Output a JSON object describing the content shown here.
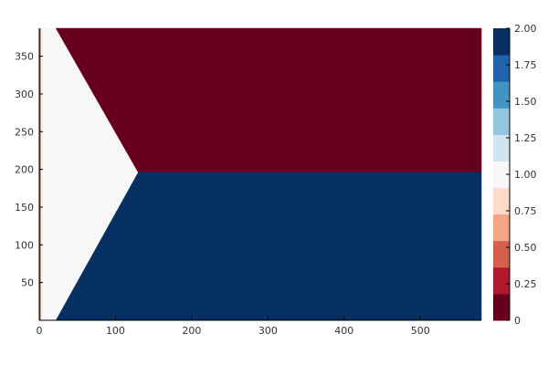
{
  "chart_data": {
    "type": "heatmap",
    "title": "",
    "xlabel": "",
    "ylabel": "",
    "xlim": [
      0,
      580
    ],
    "ylim": [
      0,
      387
    ],
    "x_ticks": [
      0,
      100,
      200,
      300,
      400,
      500
    ],
    "y_ticks": [
      50,
      100,
      150,
      200,
      250,
      300,
      350
    ],
    "grid": false,
    "regions": [
      {
        "value": 1.0,
        "polygon": [
          [
            0,
            387
          ],
          [
            22,
            387
          ],
          [
            130,
            196
          ],
          [
            22,
            0
          ],
          [
            0,
            0
          ]
        ]
      },
      {
        "value": 0.0,
        "polygon": [
          [
            22,
            387
          ],
          [
            580,
            387
          ],
          [
            580,
            196
          ],
          [
            130,
            196
          ]
        ]
      },
      {
        "value": 2.0,
        "polygon": [
          [
            22,
            0
          ],
          [
            130,
            196
          ],
          [
            580,
            196
          ],
          [
            580,
            0
          ]
        ]
      }
    ],
    "boundary_line": {
      "x": 0,
      "y_range": [
        0,
        387
      ],
      "color": "#c0392b"
    },
    "colorbar": {
      "min": 0,
      "max": 2,
      "ticks": [
        0,
        0.25,
        0.5,
        0.75,
        1.0,
        1.25,
        1.5,
        1.75,
        2.0
      ],
      "tick_labels": [
        "0",
        "0.25",
        "0.50",
        "0.75",
        "1.00",
        "1.25",
        "1.50",
        "1.75",
        "2.00"
      ],
      "bins": [
        {
          "from": 0.0,
          "to": 0.1818,
          "color": "#67001f"
        },
        {
          "from": 0.1818,
          "to": 0.3636,
          "color": "#b2182b"
        },
        {
          "from": 0.3636,
          "to": 0.5455,
          "color": "#d6604d"
        },
        {
          "from": 0.5455,
          "to": 0.7273,
          "color": "#f4a582"
        },
        {
          "from": 0.7273,
          "to": 0.9091,
          "color": "#fddbc7"
        },
        {
          "from": 0.9091,
          "to": 1.0909,
          "color": "#f7f7f7"
        },
        {
          "from": 1.0909,
          "to": 1.2727,
          "color": "#d1e5f0"
        },
        {
          "from": 1.2727,
          "to": 1.4545,
          "color": "#92c5de"
        },
        {
          "from": 1.4545,
          "to": 1.6364,
          "color": "#4393c3"
        },
        {
          "from": 1.6364,
          "to": 1.8182,
          "color": "#2166ac"
        },
        {
          "from": 1.8182,
          "to": 2.0,
          "color": "#053061"
        }
      ]
    }
  }
}
